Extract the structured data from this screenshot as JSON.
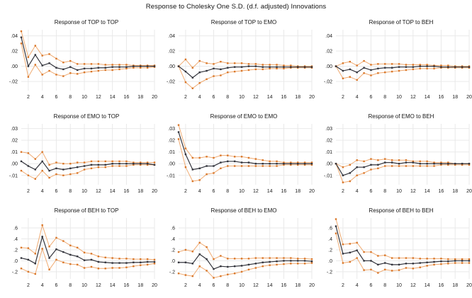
{
  "title": "Response to Cholesky One S.D. (d.f. adjusted) Innovations",
  "colors": {
    "response_line": "#33343c",
    "response_marker": "#33343c",
    "band_line": "#f0ab72",
    "band_marker": "#d9772a",
    "grid": "#e9e9e9",
    "tick_text": "#1a1a1a",
    "title_text": "#121212",
    "background": "#ffffff"
  },
  "chart_data": [
    {
      "type": "line",
      "title": "Response of TOP to TOP",
      "x": [
        1,
        2,
        3,
        4,
        5,
        6,
        7,
        8,
        9,
        10,
        11,
        12,
        13,
        14,
        15,
        16,
        17,
        18,
        19,
        20
      ],
      "xticks": [
        2,
        4,
        6,
        8,
        10,
        12,
        14,
        16,
        18,
        20
      ],
      "ytick_labels": [
        ".04",
        ".02",
        ".00",
        "-.02"
      ],
      "ytick_values": [
        0.04,
        0.02,
        0,
        -0.02
      ],
      "ylim": [
        -0.032,
        0.048
      ],
      "legend": "none",
      "grid": "on",
      "series": [
        {
          "name": "upper-band",
          "values": [
            0.046,
            0.012,
            0.027,
            0.014,
            0.016,
            0.01,
            0.005,
            0.007,
            0.003,
            0.003,
            0.003,
            0.003,
            0.002,
            0.002,
            0.002,
            0.002,
            0.001,
            0.001,
            0.001,
            0.001
          ]
        },
        {
          "name": "lower-band",
          "values": [
            0.03,
            -0.014,
            0.002,
            -0.011,
            -0.006,
            -0.011,
            -0.013,
            -0.009,
            -0.01,
            -0.008,
            -0.007,
            -0.006,
            -0.005,
            -0.005,
            -0.004,
            -0.003,
            -0.002,
            -0.002,
            -0.002,
            -0.001
          ]
        },
        {
          "name": "response",
          "values": [
            0.038,
            0.0,
            0.015,
            0.001,
            0.004,
            -0.002,
            -0.004,
            -0.001,
            -0.005,
            -0.003,
            -0.003,
            -0.002,
            -0.002,
            -0.001,
            -0.001,
            -0.001,
            0.0,
            0.0,
            0.0,
            0.0
          ]
        }
      ]
    },
    {
      "type": "line",
      "title": "Response of TOP to EMO",
      "x": [
        1,
        2,
        3,
        4,
        5,
        6,
        7,
        8,
        9,
        10,
        11,
        12,
        13,
        14,
        15,
        16,
        17,
        18,
        19,
        20
      ],
      "xticks": [
        2,
        4,
        6,
        8,
        10,
        12,
        14,
        16,
        18,
        20
      ],
      "ytick_labels": [
        ".04",
        ".02",
        ".00",
        "-.02"
      ],
      "ytick_values": [
        0.04,
        0.02,
        0,
        -0.02
      ],
      "ylim": [
        -0.032,
        0.048
      ],
      "legend": "none",
      "grid": "on",
      "series": [
        {
          "name": "upper-band",
          "values": [
            0.0,
            0.009,
            -0.002,
            0.007,
            0.004,
            0.003,
            0.006,
            0.004,
            0.004,
            0.004,
            0.003,
            0.003,
            0.002,
            0.002,
            0.002,
            0.001,
            0.001,
            0.0,
            0.0,
            0.0
          ]
        },
        {
          "name": "lower-band",
          "values": [
            0.0,
            -0.021,
            -0.029,
            -0.022,
            -0.017,
            -0.013,
            -0.012,
            -0.008,
            -0.007,
            -0.006,
            -0.005,
            -0.004,
            -0.004,
            -0.003,
            -0.003,
            -0.003,
            -0.002,
            -0.002,
            -0.002,
            -0.002
          ]
        },
        {
          "name": "response",
          "values": [
            0.0,
            -0.007,
            -0.015,
            -0.008,
            -0.006,
            -0.003,
            -0.004,
            -0.002,
            -0.001,
            -0.001,
            0.0,
            0.0,
            -0.001,
            -0.001,
            -0.001,
            -0.001,
            -0.001,
            -0.001,
            -0.001,
            -0.001
          ]
        }
      ]
    },
    {
      "type": "line",
      "title": "Response of TOP to BEH",
      "x": [
        1,
        2,
        3,
        4,
        5,
        6,
        7,
        8,
        9,
        10,
        11,
        12,
        13,
        14,
        15,
        16,
        17,
        18,
        19,
        20
      ],
      "xticks": [
        2,
        4,
        6,
        8,
        10,
        12,
        14,
        16,
        18,
        20
      ],
      "ytick_labels": [
        ".04",
        ".02",
        ".00",
        "-.02"
      ],
      "ytick_values": [
        0.04,
        0.02,
        0,
        -0.02
      ],
      "ylim": [
        -0.032,
        0.048
      ],
      "legend": "none",
      "grid": "on",
      "series": [
        {
          "name": "upper-band",
          "values": [
            0.0,
            0.004,
            0.006,
            0.001,
            0.007,
            0.002,
            0.003,
            0.003,
            0.003,
            0.003,
            0.002,
            0.002,
            0.002,
            0.002,
            0.001,
            0.001,
            0.001,
            0.0,
            0.0,
            0.0
          ]
        },
        {
          "name": "lower-band",
          "values": [
            0.0,
            -0.016,
            -0.014,
            -0.018,
            -0.009,
            -0.012,
            -0.009,
            -0.008,
            -0.007,
            -0.006,
            -0.005,
            -0.004,
            -0.003,
            -0.003,
            -0.003,
            -0.002,
            -0.002,
            -0.002,
            -0.002,
            -0.002
          ]
        },
        {
          "name": "response",
          "values": [
            0.0,
            -0.006,
            -0.004,
            -0.008,
            -0.002,
            -0.005,
            -0.003,
            -0.002,
            -0.002,
            -0.001,
            -0.001,
            -0.001,
            0.0,
            0.0,
            0.0,
            -0.001,
            -0.001,
            -0.001,
            -0.001,
            -0.001
          ]
        }
      ]
    },
    {
      "type": "line",
      "title": "Response of EMO to TOP",
      "x": [
        1,
        2,
        3,
        4,
        5,
        6,
        7,
        8,
        9,
        10,
        11,
        12,
        13,
        14,
        15,
        16,
        17,
        18,
        19,
        20
      ],
      "xticks": [
        2,
        4,
        6,
        8,
        10,
        12,
        14,
        16,
        18,
        20
      ],
      "ytick_labels": [
        ".03",
        ".02",
        ".01",
        ".00",
        "-.01"
      ],
      "ytick_values": [
        0.03,
        0.02,
        0.01,
        0,
        -0.01
      ],
      "ylim": [
        -0.018,
        0.034
      ],
      "legend": "none",
      "grid": "on",
      "series": [
        {
          "name": "upper-band",
          "values": [
            0.01,
            0.009,
            0.004,
            0.01,
            -0.001,
            0.001,
            0.0,
            0.0,
            0.001,
            0.001,
            0.002,
            0.002,
            0.002,
            0.002,
            0.002,
            0.002,
            0.001,
            0.001,
            0.001,
            0.001
          ]
        },
        {
          "name": "lower-band",
          "values": [
            -0.006,
            -0.01,
            -0.013,
            -0.006,
            -0.012,
            -0.009,
            -0.01,
            -0.009,
            -0.008,
            -0.005,
            -0.004,
            -0.003,
            -0.003,
            -0.002,
            -0.002,
            -0.002,
            -0.001,
            -0.001,
            -0.001,
            -0.001
          ]
        },
        {
          "name": "response",
          "values": [
            0.002,
            -0.002,
            -0.005,
            0.002,
            -0.006,
            -0.004,
            -0.005,
            -0.004,
            -0.003,
            -0.002,
            -0.001,
            -0.001,
            -0.001,
            0.0,
            0.0,
            0.0,
            0.0,
            0.0,
            0.0,
            -0.001
          ]
        }
      ]
    },
    {
      "type": "line",
      "title": "Response of EMO to EMO",
      "x": [
        1,
        2,
        3,
        4,
        5,
        6,
        7,
        8,
        9,
        10,
        11,
        12,
        13,
        14,
        15,
        16,
        17,
        18,
        19,
        20
      ],
      "xticks": [
        2,
        4,
        6,
        8,
        10,
        12,
        14,
        16,
        18,
        20
      ],
      "ytick_labels": [
        ".03",
        ".02",
        ".01",
        ".00",
        "-.01"
      ],
      "ytick_values": [
        0.03,
        0.02,
        0.01,
        0,
        -0.01
      ],
      "ylim": [
        -0.018,
        0.034
      ],
      "legend": "none",
      "grid": "on",
      "series": [
        {
          "name": "upper-band",
          "values": [
            0.033,
            0.013,
            0.005,
            0.005,
            0.006,
            0.005,
            0.007,
            0.007,
            0.006,
            0.006,
            0.005,
            0.004,
            0.003,
            0.002,
            0.002,
            0.001,
            0.001,
            0.001,
            0.001,
            0.001
          ]
        },
        {
          "name": "lower-band",
          "values": [
            0.021,
            -0.003,
            -0.015,
            -0.014,
            -0.009,
            -0.008,
            -0.004,
            -0.002,
            -0.002,
            -0.002,
            -0.002,
            -0.002,
            -0.002,
            -0.002,
            -0.002,
            -0.001,
            -0.001,
            -0.001,
            -0.001,
            -0.001
          ]
        },
        {
          "name": "response",
          "values": [
            0.027,
            0.008,
            -0.005,
            -0.004,
            -0.002,
            -0.002,
            0.001,
            0.002,
            0.002,
            0.001,
            0.001,
            0.0,
            0.0,
            0.0,
            0.0,
            0.0,
            0.0,
            0.0,
            0.0,
            0.0
          ]
        }
      ]
    },
    {
      "type": "line",
      "title": "Response of EMO to BEH",
      "x": [
        1,
        2,
        3,
        4,
        5,
        6,
        7,
        8,
        9,
        10,
        11,
        12,
        13,
        14,
        15,
        16,
        17,
        18,
        19,
        20
      ],
      "xticks": [
        2,
        4,
        6,
        8,
        10,
        12,
        14,
        16,
        18,
        20
      ],
      "ytick_labels": [
        ".03",
        ".02",
        ".01",
        ".00",
        "-.01"
      ],
      "ytick_values": [
        0.03,
        0.02,
        0.01,
        0,
        -0.01
      ],
      "ylim": [
        -0.018,
        0.034
      ],
      "legend": "none",
      "grid": "on",
      "series": [
        {
          "name": "upper-band",
          "values": [
            0.0,
            -0.003,
            -0.001,
            0.003,
            0.002,
            0.004,
            0.003,
            0.004,
            0.003,
            0.003,
            0.003,
            0.002,
            0.002,
            0.002,
            0.001,
            0.001,
            0.001,
            0.0,
            0.0,
            0.0
          ]
        },
        {
          "name": "lower-band",
          "values": [
            0.0,
            -0.016,
            -0.015,
            -0.01,
            -0.008,
            -0.005,
            -0.004,
            -0.002,
            -0.002,
            -0.002,
            -0.002,
            -0.002,
            -0.002,
            -0.002,
            -0.002,
            -0.001,
            -0.001,
            -0.001,
            -0.001,
            -0.001
          ]
        },
        {
          "name": "response",
          "values": [
            0.0,
            -0.01,
            -0.008,
            -0.003,
            -0.003,
            -0.001,
            -0.001,
            0.001,
            0.001,
            0.0,
            0.001,
            0.001,
            0.0,
            0.0,
            0.0,
            0.0,
            0.0,
            0.0,
            0.0,
            0.0
          ]
        }
      ]
    },
    {
      "type": "line",
      "title": "Response of BEH to TOP",
      "x": [
        1,
        2,
        3,
        4,
        5,
        6,
        7,
        8,
        9,
        10,
        11,
        12,
        13,
        14,
        15,
        16,
        17,
        18,
        19,
        20
      ],
      "xticks": [
        2,
        4,
        6,
        8,
        10,
        12,
        14,
        16,
        18,
        20
      ],
      "ytick_labels": [
        ".6",
        ".4",
        ".2",
        ".0",
        "-.2"
      ],
      "ytick_values": [
        0.6,
        0.4,
        0.2,
        0,
        -0.2
      ],
      "ylim": [
        -0.33,
        0.78
      ],
      "legend": "none",
      "grid": "on",
      "series": [
        {
          "name": "upper-band",
          "values": [
            0.24,
            0.23,
            0.13,
            0.65,
            0.26,
            0.42,
            0.36,
            0.28,
            0.24,
            0.15,
            0.13,
            0.08,
            0.06,
            0.05,
            0.04,
            0.04,
            0.03,
            0.03,
            0.03,
            0.02
          ]
        },
        {
          "name": "lower-band",
          "values": [
            -0.14,
            -0.2,
            -0.24,
            0.22,
            -0.16,
            0.02,
            -0.03,
            -0.06,
            -0.07,
            -0.13,
            -0.11,
            -0.14,
            -0.14,
            -0.13,
            -0.13,
            -0.12,
            -0.1,
            -0.08,
            -0.07,
            -0.05
          ]
        },
        {
          "name": "response",
          "values": [
            0.05,
            0.02,
            -0.05,
            0.44,
            0.05,
            0.21,
            0.16,
            0.11,
            0.08,
            0.01,
            0.02,
            -0.02,
            -0.03,
            -0.04,
            -0.04,
            -0.04,
            -0.03,
            -0.03,
            -0.02,
            -0.02
          ]
        }
      ]
    },
    {
      "type": "line",
      "title": "Response of BEH to EMO",
      "x": [
        1,
        2,
        3,
        4,
        5,
        6,
        7,
        8,
        9,
        10,
        11,
        12,
        13,
        14,
        15,
        16,
        17,
        18,
        19,
        20
      ],
      "xticks": [
        2,
        4,
        6,
        8,
        10,
        12,
        14,
        16,
        18,
        20
      ],
      "ytick_labels": [
        ".6",
        ".4",
        ".2",
        ".0",
        "-.2"
      ],
      "ytick_values": [
        0.6,
        0.4,
        0.2,
        0,
        -0.2
      ],
      "ylim": [
        -0.33,
        0.78
      ],
      "legend": "none",
      "grid": "on",
      "series": [
        {
          "name": "upper-band",
          "values": [
            0.16,
            0.2,
            0.17,
            0.33,
            0.25,
            0.03,
            0.09,
            0.04,
            0.04,
            0.04,
            0.04,
            0.05,
            0.05,
            0.05,
            0.05,
            0.05,
            0.05,
            0.04,
            0.04,
            0.03
          ]
        },
        {
          "name": "lower-band",
          "values": [
            -0.23,
            -0.26,
            -0.28,
            -0.1,
            -0.18,
            -0.31,
            -0.28,
            -0.25,
            -0.23,
            -0.2,
            -0.16,
            -0.13,
            -0.1,
            -0.08,
            -0.07,
            -0.06,
            -0.05,
            -0.05,
            -0.05,
            -0.04
          ]
        },
        {
          "name": "response",
          "values": [
            -0.03,
            -0.03,
            -0.05,
            0.12,
            0.03,
            -0.15,
            -0.1,
            -0.11,
            -0.1,
            -0.09,
            -0.07,
            -0.05,
            -0.03,
            -0.02,
            -0.01,
            0.0,
            0.0,
            0.0,
            0.0,
            -0.01
          ]
        }
      ]
    },
    {
      "type": "line",
      "title": "Response of BEH to BEH",
      "x": [
        1,
        2,
        3,
        4,
        5,
        6,
        7,
        8,
        9,
        10,
        11,
        12,
        13,
        14,
        15,
        16,
        17,
        18,
        19,
        20
      ],
      "xticks": [
        2,
        4,
        6,
        8,
        10,
        12,
        14,
        16,
        18,
        20
      ],
      "ytick_labels": [
        ".6",
        ".4",
        ".2",
        ".0",
        "-.2"
      ],
      "ytick_values": [
        0.6,
        0.4,
        0.2,
        0,
        -0.2
      ],
      "ylim": [
        -0.33,
        0.78
      ],
      "legend": "none",
      "grid": "on",
      "series": [
        {
          "name": "upper-band",
          "values": [
            0.76,
            0.3,
            0.31,
            0.33,
            0.16,
            0.16,
            0.09,
            0.1,
            0.05,
            0.05,
            0.05,
            0.05,
            0.04,
            0.04,
            0.04,
            0.04,
            0.03,
            0.03,
            0.03,
            0.03
          ]
        },
        {
          "name": "lower-band",
          "values": [
            0.5,
            -0.04,
            -0.02,
            0.05,
            -0.17,
            -0.16,
            -0.22,
            -0.16,
            -0.18,
            -0.17,
            -0.13,
            -0.14,
            -0.12,
            -0.09,
            -0.07,
            -0.06,
            -0.05,
            -0.04,
            -0.04,
            -0.04
          ]
        },
        {
          "name": "response",
          "values": [
            0.63,
            0.13,
            0.15,
            0.19,
            0.0,
            0.0,
            -0.07,
            -0.04,
            -0.07,
            -0.07,
            -0.05,
            -0.05,
            -0.04,
            -0.03,
            -0.02,
            -0.01,
            -0.01,
            0.0,
            0.0,
            0.0
          ]
        }
      ]
    }
  ]
}
